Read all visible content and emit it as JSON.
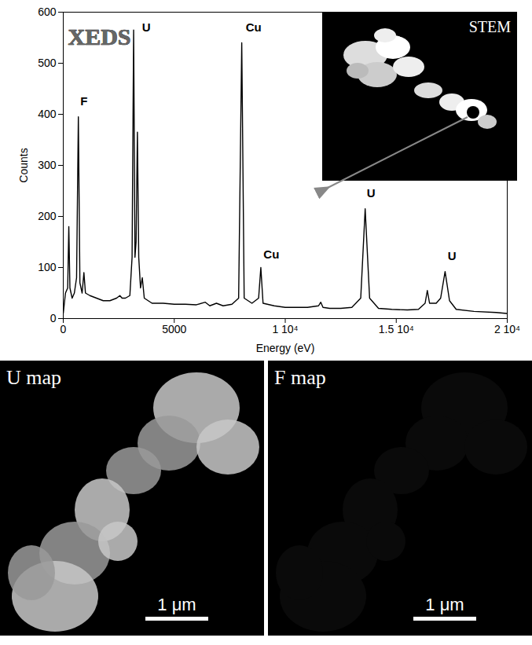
{
  "chart_data": {
    "type": "line",
    "title": "XEDS",
    "xlabel": "Energy (eV)",
    "ylabel": "Counts",
    "color": "#000000",
    "grid": false,
    "xlim": [
      0,
      20000
    ],
    "ylim": [
      0,
      600
    ],
    "xticks": [
      0,
      5000,
      {
        "value": 10000,
        "label": "1 10⁴"
      },
      {
        "value": 15000,
        "label": "1.5 10⁴"
      },
      {
        "value": 20000,
        "label": "2 10⁴"
      }
    ],
    "yticks": [
      0,
      100,
      200,
      300,
      400,
      500,
      600
    ],
    "x": [
      0,
      100,
      200,
      250,
      300,
      400,
      500,
      600,
      680,
      750,
      850,
      930,
      1000,
      1200,
      1500,
      1800,
      2100,
      2400,
      2550,
      2650,
      2800,
      3000,
      3100,
      3170,
      3230,
      3280,
      3340,
      3400,
      3480,
      3560,
      3650,
      4000,
      4500,
      5000,
      5500,
      6000,
      6400,
      6600,
      6900,
      7200,
      7600,
      7900,
      8040,
      8150,
      8500,
      8800,
      8900,
      9000,
      9500,
      10000,
      10500,
      11000,
      11500,
      11600,
      11700,
      12000,
      12500,
      13000,
      13400,
      13600,
      13800,
      14200,
      14800,
      15500,
      16000,
      16300,
      16400,
      16500,
      16800,
      17000,
      17200,
      17400,
      17700,
      18500,
      19500,
      20000
    ],
    "values": [
      10,
      50,
      60,
      180,
      60,
      40,
      50,
      80,
      395,
      70,
      50,
      90,
      50,
      45,
      40,
      35,
      35,
      40,
      45,
      40,
      40,
      45,
      120,
      565,
      120,
      150,
      365,
      120,
      60,
      80,
      40,
      30,
      30,
      28,
      28,
      27,
      32,
      25,
      30,
      25,
      28,
      40,
      540,
      40,
      30,
      40,
      100,
      30,
      25,
      22,
      22,
      22,
      25,
      32,
      22,
      20,
      20,
      22,
      40,
      215,
      40,
      20,
      18,
      17,
      18,
      30,
      55,
      30,
      30,
      40,
      92,
      35,
      18,
      14,
      12,
      10
    ],
    "annotations": [
      {
        "text": "F",
        "x": 700,
        "y": 425
      },
      {
        "text": "U",
        "x": 3480,
        "y": 570
      },
      {
        "text": "Cu",
        "x": 8150,
        "y": 570
      },
      {
        "text": "Cu",
        "x": 8950,
        "y": 125
      },
      {
        "text": "U",
        "x": 13600,
        "y": 245
      },
      {
        "text": "U",
        "x": 17250,
        "y": 122
      }
    ]
  },
  "inset": {
    "label": "STEM"
  },
  "maps": [
    {
      "label": "U map",
      "scale_bar": "1 μm"
    },
    {
      "label": "F map",
      "scale_bar": "1 μm"
    }
  ]
}
